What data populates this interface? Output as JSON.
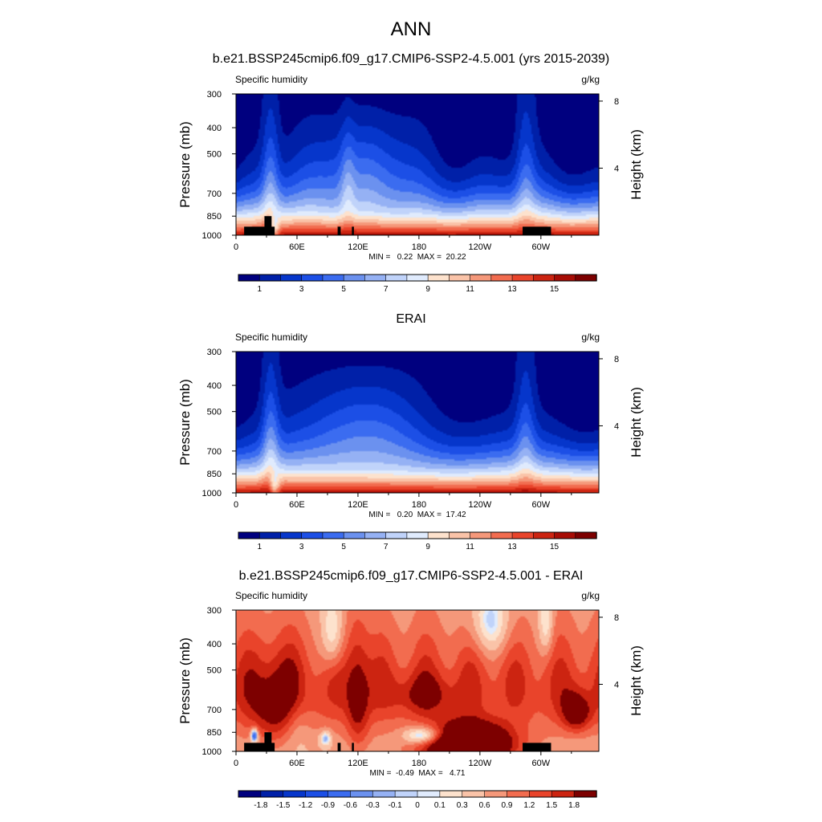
{
  "figure": {
    "title": "ANN"
  },
  "colors": {
    "abs_scale": [
      "#00007f",
      "#0020a8",
      "#0636cb",
      "#1c4fe6",
      "#3b6cf0",
      "#6b91ef",
      "#95b1f4",
      "#c0d3fa",
      "#e0ebfd",
      "#fde2cd",
      "#fac3a8",
      "#f5987a",
      "#f26c4f",
      "#e9442b",
      "#cc2411",
      "#a70c05",
      "#7d0000"
    ],
    "diff_scale": [
      "#00007f",
      "#0020a8",
      "#0636cb",
      "#1c4fe6",
      "#3b6cf0",
      "#6b91ef",
      "#95b1f4",
      "#c0d3fa",
      "#e0ebfd",
      "#fde2cd",
      "#fac3a8",
      "#f5987a",
      "#f26c4f",
      "#e9442b",
      "#cc2411",
      "#7d0000"
    ],
    "topography": "#000000"
  },
  "chart_data": [
    {
      "type": "heatmap",
      "plot_id": "model",
      "title": "b.e21.BSSP245cmip6.f09_g17.CMIP6-SSP2-4.5.001 (yrs 2015-2039)",
      "left_label": "Specific humidity",
      "units": "g/kg",
      "ylabel": "Pressure (mb)",
      "ylabel_right": "Height (km)",
      "x_ticks": [
        "0",
        "60E",
        "120E",
        "180",
        "120W",
        "60W"
      ],
      "x_tick_lon": [
        0,
        60,
        120,
        180,
        240,
        300
      ],
      "xlim": [
        0,
        357
      ],
      "y_ticks": [
        "300",
        "400",
        "500",
        "700",
        "850",
        "1000"
      ],
      "y_tick_p": [
        300,
        400,
        500,
        700,
        850,
        1000
      ],
      "ylim": [
        300,
        1000
      ],
      "y_log": true,
      "right_ticks": [
        "8",
        "4"
      ],
      "right_tick_km": [
        8,
        4
      ],
      "stats": "MIN =   0.22  MAX =  20.22",
      "min": 0.22,
      "max": 20.22,
      "levels": [
        0,
        1,
        2,
        3,
        4,
        5,
        6,
        7,
        8,
        9,
        10,
        11,
        12,
        13,
        14,
        15,
        16
      ],
      "colorbar_labels": [
        "1",
        "3",
        "5",
        "7",
        "9",
        "11",
        "13",
        "15"
      ],
      "field": "abs",
      "bias": 0.0,
      "topography": [
        [
          8,
          38,
          930
        ],
        [
          28,
          35,
          850
        ],
        [
          100,
          103,
          930
        ],
        [
          114,
          116,
          930
        ],
        [
          282,
          310,
          930
        ]
      ],
      "model_grid": true
    },
    {
      "type": "heatmap",
      "plot_id": "obs",
      "title": "ERAI",
      "left_label": "Specific humidity",
      "units": "g/kg",
      "ylabel": "Pressure (mb)",
      "ylabel_right": "Height (km)",
      "x_ticks": [
        "0",
        "60E",
        "120E",
        "180",
        "120W",
        "60W"
      ],
      "x_tick_lon": [
        0,
        60,
        120,
        180,
        240,
        300
      ],
      "xlim": [
        0,
        357
      ],
      "y_ticks": [
        "300",
        "400",
        "500",
        "700",
        "850",
        "1000"
      ],
      "y_tick_p": [
        300,
        400,
        500,
        700,
        850,
        1000
      ],
      "ylim": [
        300,
        1000
      ],
      "y_log": true,
      "right_ticks": [
        "8",
        "4"
      ],
      "right_tick_km": [
        8,
        4
      ],
      "stats": "MIN =   0.20  MAX =  17.42",
      "min": 0.2,
      "max": 17.42,
      "levels": [
        0,
        1,
        2,
        3,
        4,
        5,
        6,
        7,
        8,
        9,
        10,
        11,
        12,
        13,
        14,
        15,
        16
      ],
      "colorbar_labels": [
        "1",
        "3",
        "5",
        "7",
        "9",
        "11",
        "13",
        "15"
      ],
      "field": "abs",
      "bias": 0.0,
      "topography": [],
      "model_grid": false
    },
    {
      "type": "heatmap",
      "plot_id": "diff",
      "title": "b.e21.BSSP245cmip6.f09_g17.CMIP6-SSP2-4.5.001 - ERAI",
      "left_label": "Specific humidity",
      "units": "g/kg",
      "ylabel": "Pressure (mb)",
      "ylabel_right": "Height (km)",
      "x_ticks": [
        "0",
        "60E",
        "120E",
        "180",
        "120W",
        "60W"
      ],
      "x_tick_lon": [
        0,
        60,
        120,
        180,
        240,
        300
      ],
      "xlim": [
        0,
        357
      ],
      "y_ticks": [
        "300",
        "400",
        "500",
        "700",
        "850",
        "1000"
      ],
      "y_tick_p": [
        300,
        400,
        500,
        700,
        850,
        1000
      ],
      "ylim": [
        300,
        1000
      ],
      "y_log": true,
      "right_ticks": [
        "8",
        "4"
      ],
      "right_tick_km": [
        8,
        4
      ],
      "stats": "MIN =  -0.49  MAX =   4.71",
      "min": -0.49,
      "max": 4.71,
      "levels": [
        -2.1,
        -1.8,
        -1.5,
        -1.2,
        -0.9,
        -0.6,
        -0.3,
        -0.1,
        0,
        0.1,
        0.3,
        0.6,
        0.9,
        1.2,
        1.5,
        1.8,
        2.1
      ],
      "colorbar_labels": [
        "-1.8",
        "-1.5",
        "-1.2",
        "-0.9",
        "-0.6",
        "-0.3",
        "-0.1",
        "0",
        "0.1",
        "0.3",
        "0.6",
        "0.9",
        "1.2",
        "1.5",
        "1.8"
      ],
      "field": "diff",
      "topography": [
        [
          8,
          38,
          930
        ],
        [
          28,
          35,
          850
        ],
        [
          100,
          103,
          930
        ],
        [
          114,
          116,
          930
        ],
        [
          282,
          310,
          930
        ]
      ],
      "model_grid": true
    }
  ]
}
